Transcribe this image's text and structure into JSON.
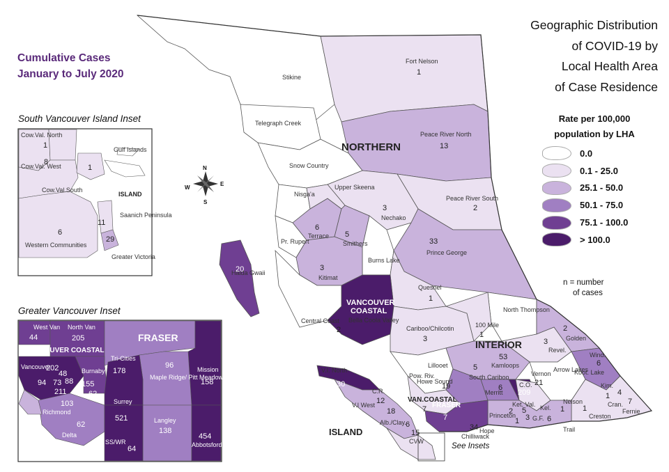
{
  "title": [
    "Geographic Distribution",
    "of COVID-19 by",
    "Local Health Area",
    "of Case Residence"
  ],
  "subtitle": [
    "Cumulative Cases",
    "January to July 2020"
  ],
  "insets": {
    "south_island_title": "South Vancouver Island Inset",
    "greater_vancouver_title": "Greater Vancouver Inset",
    "see_insets": "See Insets"
  },
  "legend": {
    "title": [
      "Rate per 100,000",
      "population by LHA"
    ],
    "items": [
      {
        "label": "0.0",
        "color": "#ffffff"
      },
      {
        "label": "0.1 - 25.0",
        "color": "#ebe1f1"
      },
      {
        "label": "25.1 - 50.0",
        "color": "#c9b3dc"
      },
      {
        "label": "50.1 - 75.0",
        "color": "#a07fc2"
      },
      {
        "label": "75.1 - 100.0",
        "color": "#6f3f92"
      },
      {
        "label": "> 100.0",
        "color": "#4b1c6a"
      }
    ],
    "note": [
      "n = number",
      "of cases"
    ]
  },
  "compass": {
    "n": "N",
    "s": "S",
    "e": "E",
    "w": "W"
  },
  "regions": {
    "northern": "NORTHERN",
    "interior": "INTERIOR",
    "island": "ISLAND",
    "island_inset": "ISLAND",
    "vancouver_coastal": [
      "VANCOUVER",
      "COASTAL"
    ],
    "van_coastal": "VAN.COASTAL",
    "fraser": "FRASER",
    "fraser_inset": "FRASER",
    "vancouver_coastal_inset": "VANCOUVER COASTAL"
  },
  "lha": [
    {
      "name": "Stikine",
      "count": ""
    },
    {
      "name": "Fort Nelson",
      "count": "1"
    },
    {
      "name": "Telegraph Creek",
      "count": ""
    },
    {
      "name": "Peace River North",
      "count": "13"
    },
    {
      "name": "Snow Country",
      "count": ""
    },
    {
      "name": "Peace River South",
      "count": "2"
    },
    {
      "name": "Nisga'a",
      "count": ""
    },
    {
      "name": "Upper Skeena",
      "count": ""
    },
    {
      "name": "Nechako",
      "count": "3"
    },
    {
      "name": "Terrace",
      "count": "6"
    },
    {
      "name": "Smithers",
      "count": "5"
    },
    {
      "name": "Pr. Rupert",
      "count": ""
    },
    {
      "name": "Prince George",
      "count": "33"
    },
    {
      "name": "Haida Gwaii",
      "count": "20"
    },
    {
      "name": "Burns Lake",
      "count": ""
    },
    {
      "name": "Kitimat",
      "count": "3"
    },
    {
      "name": "Quesnel",
      "count": "1"
    },
    {
      "name": "Central Coast",
      "count": ""
    },
    {
      "name": "Bella Coola Valley",
      "count": "2"
    },
    {
      "name": "North Thompson",
      "count": ""
    },
    {
      "name": "100 Mile",
      "count": "1"
    },
    {
      "name": "Cariboo/Chilcotin",
      "count": "3"
    },
    {
      "name": "Golden",
      "count": "2"
    },
    {
      "name": "Revel.",
      "count": "3"
    },
    {
      "name": "Kamloops",
      "count": "53"
    },
    {
      "name": "Wind.",
      "count": "6"
    },
    {
      "name": "Lillooet",
      "count": ""
    },
    {
      "name": "Howe Sound",
      "count": "19"
    },
    {
      "name": "Pow. Riv.",
      "count": ""
    },
    {
      "name": "South Cariboo",
      "count": "5"
    },
    {
      "name": "Merritt",
      "count": "6"
    },
    {
      "name": "Vernon",
      "count": "21"
    },
    {
      "name": "C.O.",
      "count": "209"
    },
    {
      "name": "Arrow Lakes",
      "count": ""
    },
    {
      "name": "Koot. Lake",
      "count": ""
    },
    {
      "name": "Kim.",
      "count": "1"
    },
    {
      "name": "Nelson",
      "count": "1"
    },
    {
      "name": "Cran.",
      "count": "4"
    },
    {
      "name": "Fernie",
      "count": "7"
    },
    {
      "name": "Creston",
      "count": "1"
    },
    {
      "name": "Trail",
      "count": ""
    },
    {
      "name": "G.F.",
      "count": "3"
    },
    {
      "name": "Ket. Val.",
      "count": "1"
    },
    {
      "name": "Keremeos",
      "count": "2"
    },
    {
      "name": "Princeton",
      "count": "5"
    },
    {
      "name": "Kel.",
      "count": "6"
    },
    {
      "name": "Hope",
      "count": ""
    },
    {
      "name": "Chilliwack",
      "count": "34"
    },
    {
      "name": "V.I. North",
      "count": "30"
    },
    {
      "name": "C.R.",
      "count": "12"
    },
    {
      "name": "V.I West",
      "count": ""
    },
    {
      "name": "Alb./Clay.",
      "count": "18"
    },
    {
      "name": "Nanaimo",
      "count": "6"
    },
    {
      "name": "Oceanside",
      "count": "7"
    },
    {
      "name": "C.V.",
      "count": "15"
    },
    {
      "name": "CVW",
      "count": ""
    },
    {
      "name": "Fraser unlabeled",
      "count": "7"
    }
  ],
  "south_island_lha": [
    {
      "name": "Cow.Val. North",
      "count": "1"
    },
    {
      "name": "Gulf Islands",
      "count": ""
    },
    {
      "name": "Cow.Val. West",
      "count": ""
    },
    {
      "name": "unnamed",
      "count": "8"
    },
    {
      "name": "Gulf",
      "count": "1"
    },
    {
      "name": "Cow.Val.South",
      "count": ""
    },
    {
      "name": "Saanich Peninsula",
      "count": "11"
    },
    {
      "name": "Western Communities",
      "count": "6"
    },
    {
      "name": "Greater Victoria",
      "count": "29"
    }
  ],
  "vancouver_lha": [
    {
      "name": "West Van",
      "count": "44"
    },
    {
      "name": "North Van",
      "count": "205"
    },
    {
      "name": "Tri-Cities",
      "count": "178"
    },
    {
      "name": "Maple Ridge/ Pitt Meadows",
      "count": "96"
    },
    {
      "name": "Mission",
      "count": "158"
    },
    {
      "name": "Vancouver",
      "count": "202"
    },
    {
      "name": "Van A",
      "count": "48"
    },
    {
      "name": "Van B",
      "count": "94"
    },
    {
      "name": "Van C",
      "count": "73"
    },
    {
      "name": "Van D",
      "count": "88"
    },
    {
      "name": "Van E",
      "count": "211"
    },
    {
      "name": "Burnaby",
      "count": "155"
    },
    {
      "name": "New West",
      "count": "62"
    },
    {
      "name": "Richmond",
      "count": "103"
    },
    {
      "name": "Surrey",
      "count": "521"
    },
    {
      "name": "Langley",
      "count": "138"
    },
    {
      "name": "Abbotsford",
      "count": "454"
    },
    {
      "name": "Delta",
      "count": "62"
    },
    {
      "name": "SS/WR",
      "count": "64"
    }
  ]
}
